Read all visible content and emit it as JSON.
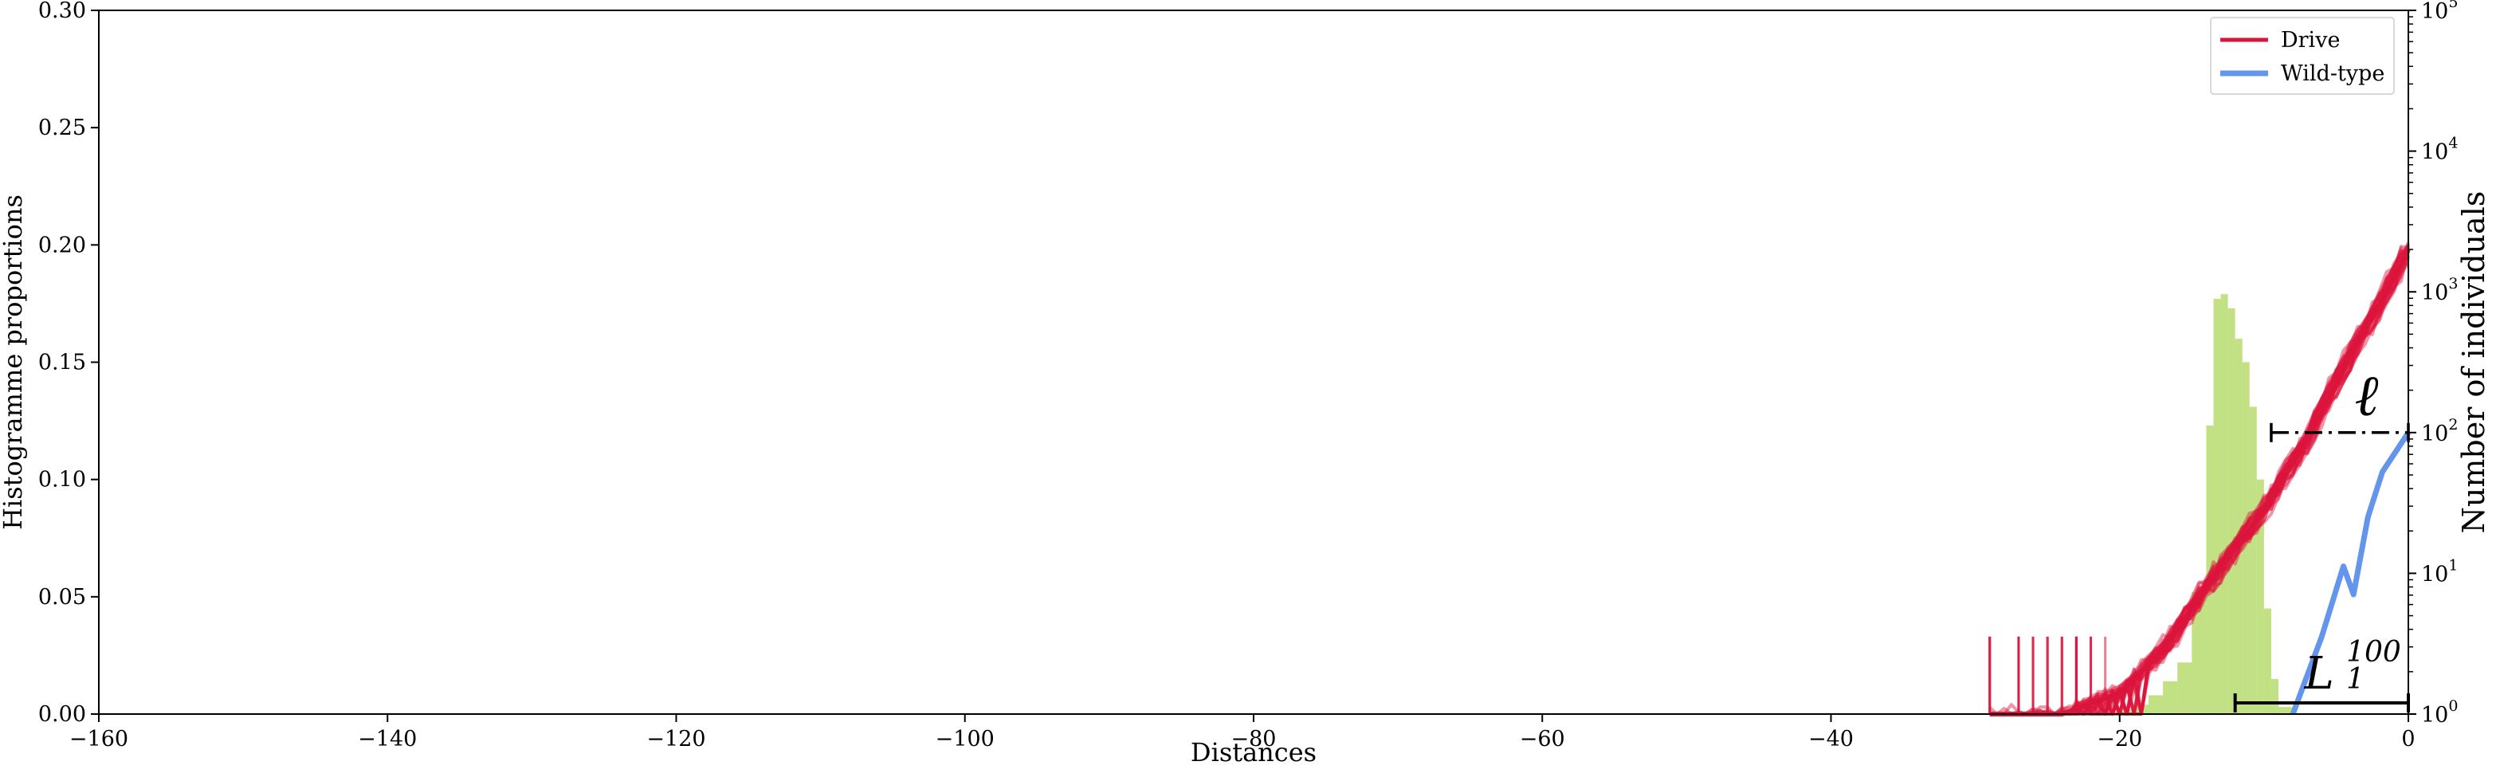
{
  "chart_data": {
    "type": "line",
    "xlabel": "Distances",
    "ylabel": "Histogramme proportions",
    "ylabel_right": "Number of individuals",
    "xlim": [
      -160,
      0
    ],
    "ylim": [
      0,
      0.3
    ],
    "ylim_right_log10": [
      0,
      5
    ],
    "x_ticks": [
      -160,
      -140,
      -120,
      -100,
      -80,
      -60,
      -40,
      -20,
      0
    ],
    "y_ticks": [
      0.0,
      0.05,
      0.1,
      0.15,
      0.2,
      0.25,
      0.3
    ],
    "y_tick_labels": [
      "0.00",
      "0.05",
      "0.10",
      "0.15",
      "0.20",
      "0.25",
      "0.30"
    ],
    "x_tick_labels": [
      "−160",
      "−140",
      "−120",
      "−100",
      "−80",
      "−60",
      "−40",
      "−20",
      "0"
    ],
    "y_right_tick_exponents": [
      "0",
      "1",
      "2",
      "3",
      "4",
      "5"
    ],
    "legend": {
      "position": "top-right",
      "entries": [
        {
          "label": "Drive",
          "color": "#dc143c"
        },
        {
          "label": "Wild-type",
          "color": "#6495ed"
        }
      ]
    },
    "histogram": {
      "color": "#9acd32",
      "bins": [
        {
          "x0": -20,
          "x1": -19,
          "y": 0.002
        },
        {
          "x0": -19,
          "x1": -18,
          "y": 0.004
        },
        {
          "x0": -18,
          "x1": -17,
          "y": 0.008
        },
        {
          "x0": -17,
          "x1": -16,
          "y": 0.014
        },
        {
          "x0": -16,
          "x1": -15,
          "y": 0.022
        },
        {
          "x0": -15,
          "x1": -14,
          "y": 0.052
        },
        {
          "x0": -14,
          "x1": -13.5,
          "y": 0.123
        },
        {
          "x0": -13.5,
          "x1": -13,
          "y": 0.177
        },
        {
          "x0": -13,
          "x1": -12.5,
          "y": 0.179
        },
        {
          "x0": -12.5,
          "x1": -12,
          "y": 0.173
        },
        {
          "x0": -12,
          "x1": -11.5,
          "y": 0.16
        },
        {
          "x0": -11.5,
          "x1": -11,
          "y": 0.15
        },
        {
          "x0": -11,
          "x1": -10.5,
          "y": 0.131
        },
        {
          "x0": -10.5,
          "x1": -10,
          "y": 0.1
        },
        {
          "x0": -10,
          "x1": -9.5,
          "y": 0.045
        },
        {
          "x0": -9.5,
          "x1": -9,
          "y": 0.015
        },
        {
          "x0": -9,
          "x1": -8,
          "y": 0.003
        }
      ]
    },
    "series": [
      {
        "name": "Drive",
        "color": "#dc143c",
        "log10_count": [
          {
            "x": -29,
            "y": 0.0
          },
          {
            "x": -24,
            "y": 0.0
          },
          {
            "x": -20,
            "y": 0.15
          },
          {
            "x": -17,
            "y": 0.45
          },
          {
            "x": -14,
            "y": 0.9
          },
          {
            "x": -10,
            "y": 1.45
          },
          {
            "x": -7,
            "y": 1.95
          },
          {
            "x": -4,
            "y": 2.55
          },
          {
            "x": -2,
            "y": 2.9
          },
          {
            "x": 0,
            "y": 3.3
          }
        ]
      },
      {
        "name": "Wild-type",
        "color": "#6495ed",
        "log10_count": [
          {
            "x": -8,
            "y": 0.0
          },
          {
            "x": -6,
            "y": 0.55
          },
          {
            "x": -4.5,
            "y": 1.05
          },
          {
            "x": -3.8,
            "y": 0.85
          },
          {
            "x": -2.8,
            "y": 1.4
          },
          {
            "x": -1.8,
            "y": 1.72
          },
          {
            "x": 0,
            "y": 2.0
          }
        ]
      }
    ],
    "annotations": [
      {
        "label": "ℓ",
        "x_from": -9.5,
        "x_to": 0,
        "log10_y": 2.0,
        "style": "dash-dot"
      },
      {
        "label": "L",
        "superscript": "100",
        "subscript": "1",
        "x_from": -12,
        "x_to": 0,
        "log10_y": 0.0,
        "style": "solid"
      }
    ]
  }
}
